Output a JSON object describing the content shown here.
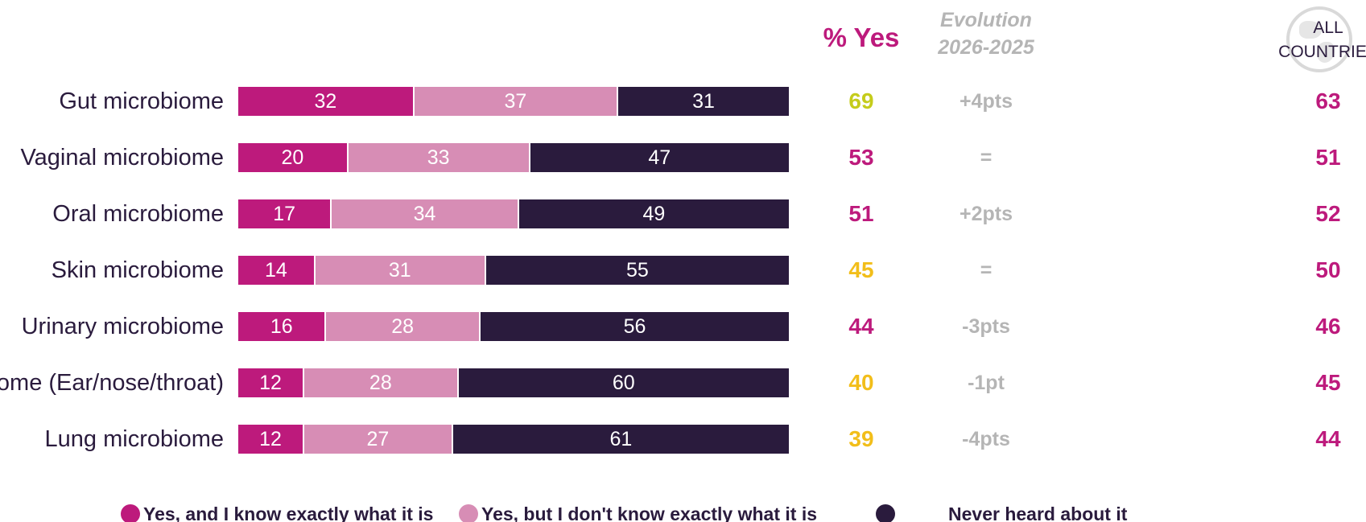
{
  "colors": {
    "know_exactly": "#bd1a7c",
    "dont_know_exactly": "#d78db5",
    "never_heard": "#2a1b3d",
    "pct_high": "#c5cc1b",
    "pct_mid": "#bd1a7c",
    "pct_low": "#f2be1a",
    "evolution": "#b5b5b5"
  },
  "headers": {
    "yes": "% Yes",
    "evolution_line1": "Evolution",
    "evolution_line2": "2026-2025",
    "all_line1": "ALL",
    "all_line2": "COUNTRIES",
    "globe_icon": "globe-icon"
  },
  "chart_data": {
    "type": "bar",
    "orientation": "horizontal",
    "stacked": true,
    "categories": [
      "Gut microbiome",
      "Vaginal microbiome",
      "Oral microbiome",
      "Skin microbiome",
      "Urinary microbiome",
      "ENT microbiome (Ear/nose/throat)",
      "Lung microbiome"
    ],
    "series": [
      {
        "name": "Yes, and I know exactly what it is",
        "values": [
          32,
          20,
          17,
          14,
          16,
          12,
          12
        ]
      },
      {
        "name": "Yes, but I don't know exactly what it is",
        "values": [
          37,
          33,
          34,
          31,
          28,
          28,
          27
        ]
      },
      {
        "name": "Never heard about it",
        "values": [
          31,
          47,
          49,
          55,
          56,
          60,
          61
        ]
      }
    ],
    "xlim": [
      0,
      100
    ],
    "pct_yes": [
      "69",
      "53",
      "51",
      "45",
      "44",
      "40",
      "39"
    ],
    "pct_yes_color": [
      "pct_high",
      "pct_mid",
      "pct_mid",
      "pct_low",
      "pct_mid",
      "pct_low",
      "pct_low"
    ],
    "evolution": [
      "+4pts",
      "=",
      "+2pts",
      "=",
      "-3pts",
      "-1pt",
      "-4pts"
    ],
    "all_countries": [
      "63",
      "51",
      "52",
      "50",
      "46",
      "45",
      "44"
    ],
    "legend_position": "bottom"
  }
}
